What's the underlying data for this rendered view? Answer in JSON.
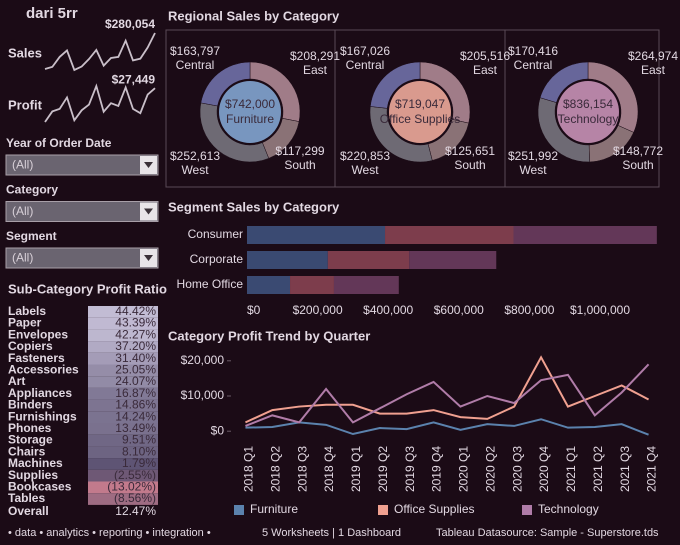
{
  "title": "dari 5rr",
  "filters": [
    {
      "label": "Year of Order Date",
      "value": "(All)"
    },
    {
      "label": "Category",
      "value": "(All)"
    },
    {
      "label": "Segment",
      "value": "(All)"
    }
  ],
  "footer": {
    "tags": "• data • analytics • reporting • integration •",
    "summary": "5 Worksheets | 1 Dashboard",
    "source": "Tableau Datasource: Sample - Superstore.tds"
  },
  "chart_data": [
    {
      "type": "sparkline",
      "title": "Sales",
      "color": "#c9bfc9",
      "values": [
        74000,
        86000,
        143000,
        180000,
        68000,
        88000,
        131000,
        183000,
        93000,
        137000,
        143000,
        236000,
        123000,
        133000,
        197000,
        280054
      ],
      "value_labels": [
        null,
        null,
        null,
        null,
        null,
        null,
        null,
        null,
        null,
        null,
        null,
        null,
        null,
        null,
        null,
        "$280,054"
      ]
    },
    {
      "type": "sparkline",
      "title": "Profit",
      "color": "#c9bfc9",
      "values": [
        3800,
        11200,
        13000,
        21000,
        5000,
        12000,
        16000,
        29000,
        11000,
        17000,
        15000,
        28000,
        13000,
        10000,
        23000,
        27449
      ],
      "value_labels": [
        null,
        null,
        null,
        null,
        null,
        null,
        null,
        null,
        null,
        null,
        null,
        null,
        null,
        null,
        null,
        "$27,449"
      ]
    },
    {
      "type": "highlight_table",
      "title": "Sub-Category Profit Ratio",
      "categories": [
        "Labels",
        "Paper",
        "Envelopes",
        "Copiers",
        "Fasteners",
        "Accessories",
        "Art",
        "Appliances",
        "Binders",
        "Furnishings",
        "Phones",
        "Storage",
        "Chairs",
        "Machines",
        "Supplies",
        "Bookcases",
        "Tables"
      ],
      "values": [
        44.42,
        43.39,
        42.27,
        37.2,
        31.4,
        25.05,
        24.07,
        16.87,
        14.86,
        14.24,
        13.49,
        9.51,
        8.1,
        1.79,
        -2.55,
        -13.02,
        -8.56
      ],
      "value_labels": [
        "44.42%",
        "43.39%",
        "42.27%",
        "37.20%",
        "31.40%",
        "25.05%",
        "24.07%",
        "16.87%",
        "14.86%",
        "14.24%",
        "13.49%",
        "9.51%",
        "8.10%",
        "1.79%",
        "(2.55%)",
        "(13.02%)",
        "(8.56%)"
      ],
      "total": {
        "label": "Overall",
        "value": 12.47,
        "value_label": "12.47%"
      }
    },
    {
      "type": "donut",
      "title": "Regional Sales by Category",
      "categories": [
        "East",
        "South",
        "West",
        "Central"
      ],
      "colors": [
        "#a07c88",
        "#8a7276",
        "#6e6a74",
        "#67669a"
      ],
      "panels": [
        {
          "name": "Furniture",
          "color": "#7896bf",
          "total": 742000,
          "total_label": "$742,000",
          "values": [
            208291,
            117299,
            252613,
            163797
          ],
          "value_labels": [
            "$208,291",
            "$117,299",
            "$252,613",
            "$163,797"
          ]
        },
        {
          "name": "Office Supplies",
          "color": "#d99a8e",
          "total": 719047,
          "total_label": "$719,047",
          "values": [
            205516,
            125651,
            220853,
            167026
          ],
          "value_labels": [
            "$205,516",
            "$125,651",
            "$220,853",
            "$167,026"
          ]
        },
        {
          "name": "Technology",
          "color": "#b684a6",
          "total": 836154,
          "total_label": "$836,154",
          "values": [
            264974,
            148772,
            251992,
            170416
          ],
          "value_labels": [
            "$264,974",
            "$148,772",
            "$251,992",
            "$170,416"
          ]
        }
      ]
    },
    {
      "type": "bar",
      "orientation": "horizontal",
      "stacked": true,
      "title": "Segment Sales by Category",
      "categories": [
        "Consumer",
        "Corporate",
        "Home Office"
      ],
      "series": [
        {
          "name": "Furniture",
          "color": "#3a4a72",
          "values": [
            391049,
            229020,
            121930
          ]
        },
        {
          "name": "Office Supplies",
          "color": "#7d3d4c",
          "values": [
            363952,
            230676,
            124418
          ]
        },
        {
          "name": "Technology",
          "color": "#633758",
          "values": [
            406040,
            246450,
            183664
          ]
        }
      ],
      "xlim": [
        0,
        1170000
      ],
      "xticks": [
        {
          "value": 0,
          "label": "$0"
        },
        {
          "value": 200000,
          "label": "$200,000"
        },
        {
          "value": 400000,
          "label": "$400,000"
        },
        {
          "value": 600000,
          "label": "$600,000"
        },
        {
          "value": 800000,
          "label": "$800,000"
        },
        {
          "value": 1000000,
          "label": "$1,000,000"
        }
      ]
    },
    {
      "type": "line",
      "title": "Category Profit Trend by Quarter",
      "legend": "bottom",
      "categories": [
        "2018 Q1",
        "2018 Q2",
        "2018 Q3",
        "2018 Q4",
        "2019 Q1",
        "2019 Q2",
        "2019 Q3",
        "2019 Q4",
        "2020 Q1",
        "2020 Q2",
        "2020 Q3",
        "2020 Q4",
        "2021 Q1",
        "2021 Q2",
        "2021 Q3",
        "2021 Q4"
      ],
      "series": [
        {
          "name": "Furniture",
          "color": "#5b82ad",
          "values": [
            1000,
            1200,
            2500,
            1800,
            -800,
            900,
            600,
            2500,
            400,
            2000,
            1500,
            3400,
            1000,
            1200,
            2000,
            -1000
          ]
        },
        {
          "name": "Office Supplies",
          "color": "#f0a090",
          "values": [
            2500,
            6000,
            7000,
            7500,
            7500,
            5000,
            5000,
            6000,
            4000,
            3500,
            7000,
            21000,
            7000,
            10000,
            13000,
            9000
          ]
        },
        {
          "name": "Technology",
          "color": "#b07ca8",
          "values": [
            1500,
            4500,
            2500,
            12000,
            2500,
            6500,
            10500,
            14000,
            7000,
            10000,
            8000,
            14500,
            16000,
            4500,
            11000,
            19000
          ]
        }
      ],
      "ylim": [
        -2500,
        22500
      ],
      "yticks": [
        {
          "value": 0,
          "label": "$0"
        },
        {
          "value": 10000,
          "label": "$10,000"
        },
        {
          "value": 20000,
          "label": "$20,000"
        }
      ]
    }
  ]
}
